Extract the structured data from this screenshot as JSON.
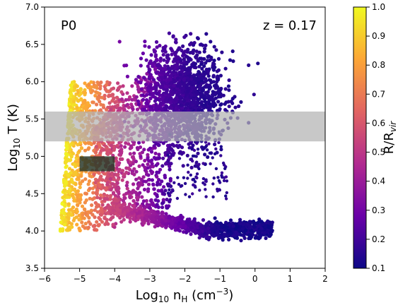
{
  "chart_data": {
    "type": "scatter",
    "title": "",
    "xlabel": "Log10 nH (cm−3)",
    "ylabel": "Log10 T (K)",
    "xlim": [
      -6,
      2
    ],
    "ylim": [
      3.5,
      7.0
    ],
    "x_ticks": [
      -6,
      -5,
      -4,
      -3,
      -2,
      -1,
      0,
      1,
      2
    ],
    "x_tick_labels": [
      "−6",
      "−5",
      "−4",
      "−3",
      "−2",
      "−1",
      "0",
      "1",
      "2"
    ],
    "y_ticks": [
      3.5,
      4.0,
      4.5,
      5.0,
      5.5,
      6.0,
      6.5,
      7.0
    ],
    "y_tick_labels": [
      "3.5",
      "4.0",
      "4.5",
      "5.0",
      "5.5",
      "6.0",
      "6.5",
      "7.0"
    ],
    "grid": false,
    "annotations": {
      "panel_label": "P0",
      "redshift_label": "z = 0.17"
    },
    "shaded_bands": [
      {
        "x_range": [
          -6,
          2
        ],
        "y_range": [
          5.2,
          5.6
        ],
        "color": "#b3b3b3"
      }
    ],
    "shaded_boxes": [
      {
        "x_range": [
          -5.0,
          -4.0
        ],
        "y_range": [
          4.8,
          5.0
        ],
        "color": "#2b3a2a"
      }
    ],
    "colorbar": {
      "label": "R/Rvir",
      "range": [
        0.1,
        1.0
      ],
      "ticks": [
        0.1,
        0.2,
        0.3,
        0.4,
        0.5,
        0.6,
        0.7,
        0.8,
        0.9,
        1.0
      ],
      "tick_labels": [
        "0.1",
        "0.2",
        "0.3",
        "0.4",
        "0.5",
        "0.6",
        "0.7",
        "0.8",
        "0.9",
        "1.0"
      ],
      "colormap": "plasma",
      "stops": [
        "#0d0887",
        "#6a00a8",
        "#b12a90",
        "#e16462",
        "#fca636",
        "#f0f921"
      ]
    },
    "point_clouds": [
      {
        "region": "dense-cold-tail",
        "x": [
          -4.2,
          -3.5,
          -3.0,
          -2.5,
          -2.0,
          -1.5,
          -1.0,
          -0.5,
          0.0,
          0.5
        ],
        "y": [
          4.3,
          4.2,
          4.12,
          4.08,
          4.05,
          4.03,
          4.02,
          4.02,
          4.01,
          4.0
        ],
        "r_over_rvir": [
          0.55,
          0.5,
          0.45,
          0.4,
          0.3,
          0.25,
          0.2,
          0.15,
          0.12,
          0.1
        ]
      },
      {
        "region": "hot-halo",
        "x": [
          -3.0,
          -2.5,
          -2.0,
          -1.5,
          -1.0
        ],
        "y": [
          6.3,
          6.45,
          6.55,
          6.5,
          6.2
        ],
        "r_over_rvir": [
          0.25,
          0.18,
          0.12,
          0.1,
          0.1
        ]
      },
      {
        "region": "diffuse-outskirts",
        "x": [
          -5.5,
          -5.0,
          -4.5,
          -4.0
        ],
        "y": [
          4.2,
          4.9,
          5.4,
          5.8
        ],
        "r_over_rvir": [
          1.0,
          0.95,
          0.9,
          0.85
        ]
      }
    ]
  }
}
